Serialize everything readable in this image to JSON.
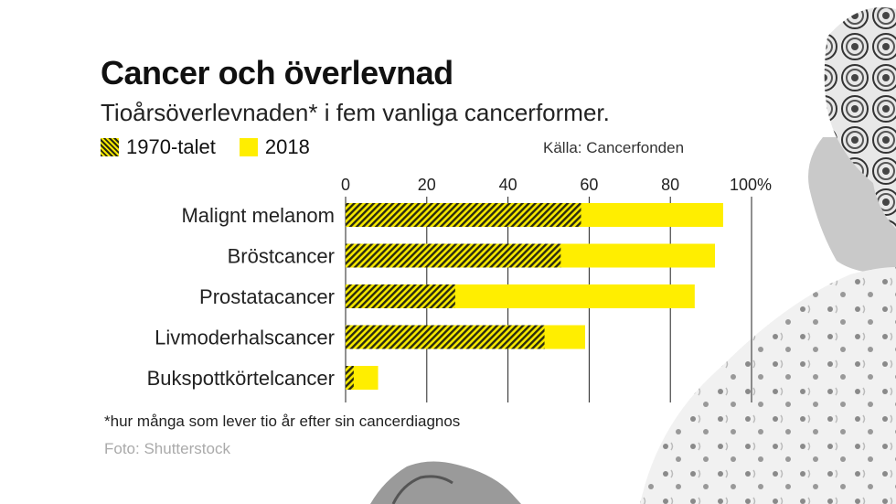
{
  "header": {
    "title": "Cancer och överlevnad",
    "subtitle": "Tioårsöverlevnaden* i fem vanliga cancerformer."
  },
  "legend": {
    "items": [
      {
        "label": "1970-talet",
        "style": "hatched"
      },
      {
        "label": "2018",
        "style": "solid"
      }
    ]
  },
  "source": "Källa: Cancerfonden",
  "footnote": "*hur många som lever tio år efter sin cancerdiagnos",
  "credit": "Foto: Shutterstock",
  "colors": {
    "yellow": "#ffee00",
    "hatch_dark": "#2b2b10",
    "grid": "#222222",
    "text": "#1a1a1a"
  },
  "chart_data": {
    "type": "bar",
    "orientation": "horizontal",
    "categories": [
      "Malignt melanom",
      "Bröstcancer",
      "Prostatacancer",
      "Livmoderhalscancer",
      "Bukspottkörtelcancer"
    ],
    "series": [
      {
        "name": "1970-talet",
        "values": [
          58,
          53,
          27,
          49,
          2
        ]
      },
      {
        "name": "2018",
        "values": [
          93,
          91,
          86,
          59,
          8
        ]
      }
    ],
    "xlim": [
      0,
      100
    ],
    "xticks": [
      0,
      20,
      40,
      60,
      80,
      100
    ],
    "xtick_labels": [
      "0",
      "20",
      "40",
      "60",
      "80",
      "100%"
    ],
    "grid": true,
    "legend_position": "top-left"
  }
}
